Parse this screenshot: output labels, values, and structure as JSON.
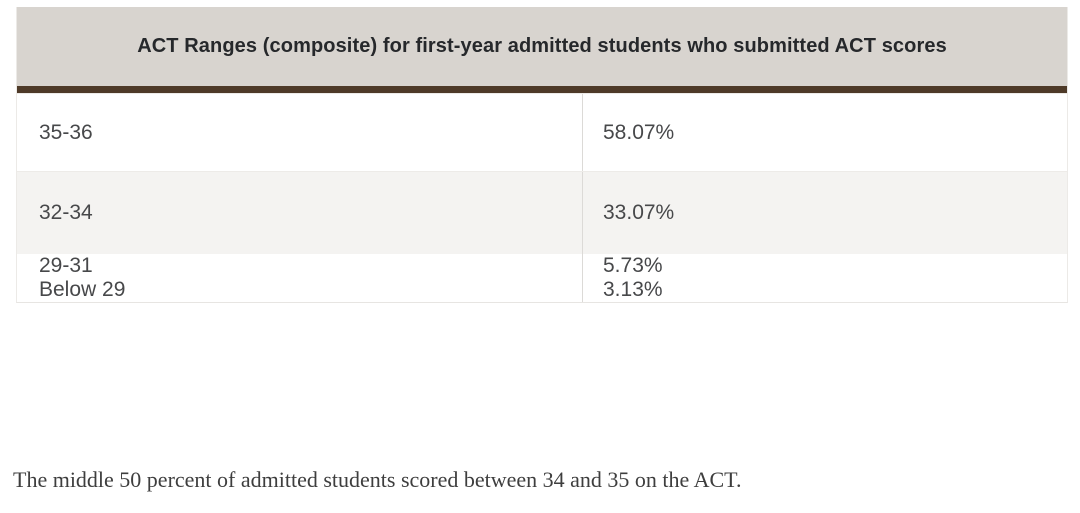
{
  "table": {
    "title": "ACT Ranges (composite) for first-year admitted students who submitted ACT scores",
    "rows": [
      {
        "range": "35-36",
        "percent": "58.07%"
      },
      {
        "range": "32-34",
        "percent": "33.07%"
      },
      {
        "range": "29-31",
        "percent": "5.73%"
      },
      {
        "range": "Below 29",
        "percent": "3.13%"
      }
    ]
  },
  "caption": "The middle 50 percent of admitted students scored between 34 and 35 on the ACT.",
  "colors": {
    "title_bg": "#d8d4cf",
    "accent_bar": "#4e3a28",
    "alt_row_bg": "#e1ddd8",
    "last_row_bg": "#f4f3f1",
    "title_text": "#26282b",
    "cell_text": "#47484a",
    "caption_text": "#3e3e3e"
  }
}
